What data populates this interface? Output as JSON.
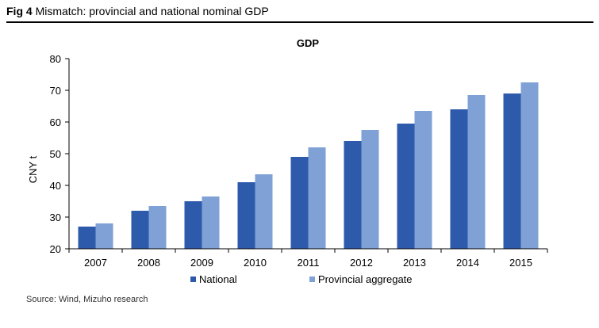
{
  "figure": {
    "label": "Fig 4",
    "title": "Mismatch: provincial and national nominal GDP",
    "source": "Source: Wind, Mizuho research"
  },
  "chart_data": {
    "type": "bar",
    "title": "GDP",
    "xlabel": "",
    "ylabel": "CNY t",
    "ylim": [
      20,
      80
    ],
    "yticks": [
      20,
      30,
      40,
      50,
      60,
      70,
      80
    ],
    "grid": false,
    "legend": "bottom",
    "categories": [
      "2007",
      "2008",
      "2009",
      "2010",
      "2011",
      "2012",
      "2013",
      "2014",
      "2015"
    ],
    "series": [
      {
        "name": "National",
        "color": "#2E5AAC",
        "values": [
          27,
          32,
          35,
          41,
          49,
          54,
          59.5,
          64,
          69
        ]
      },
      {
        "name": "Provincial aggregate",
        "color": "#7FA1D6",
        "values": [
          28,
          33.5,
          36.5,
          43.5,
          52,
          57.5,
          63.5,
          68.5,
          72.5
        ]
      }
    ]
  }
}
